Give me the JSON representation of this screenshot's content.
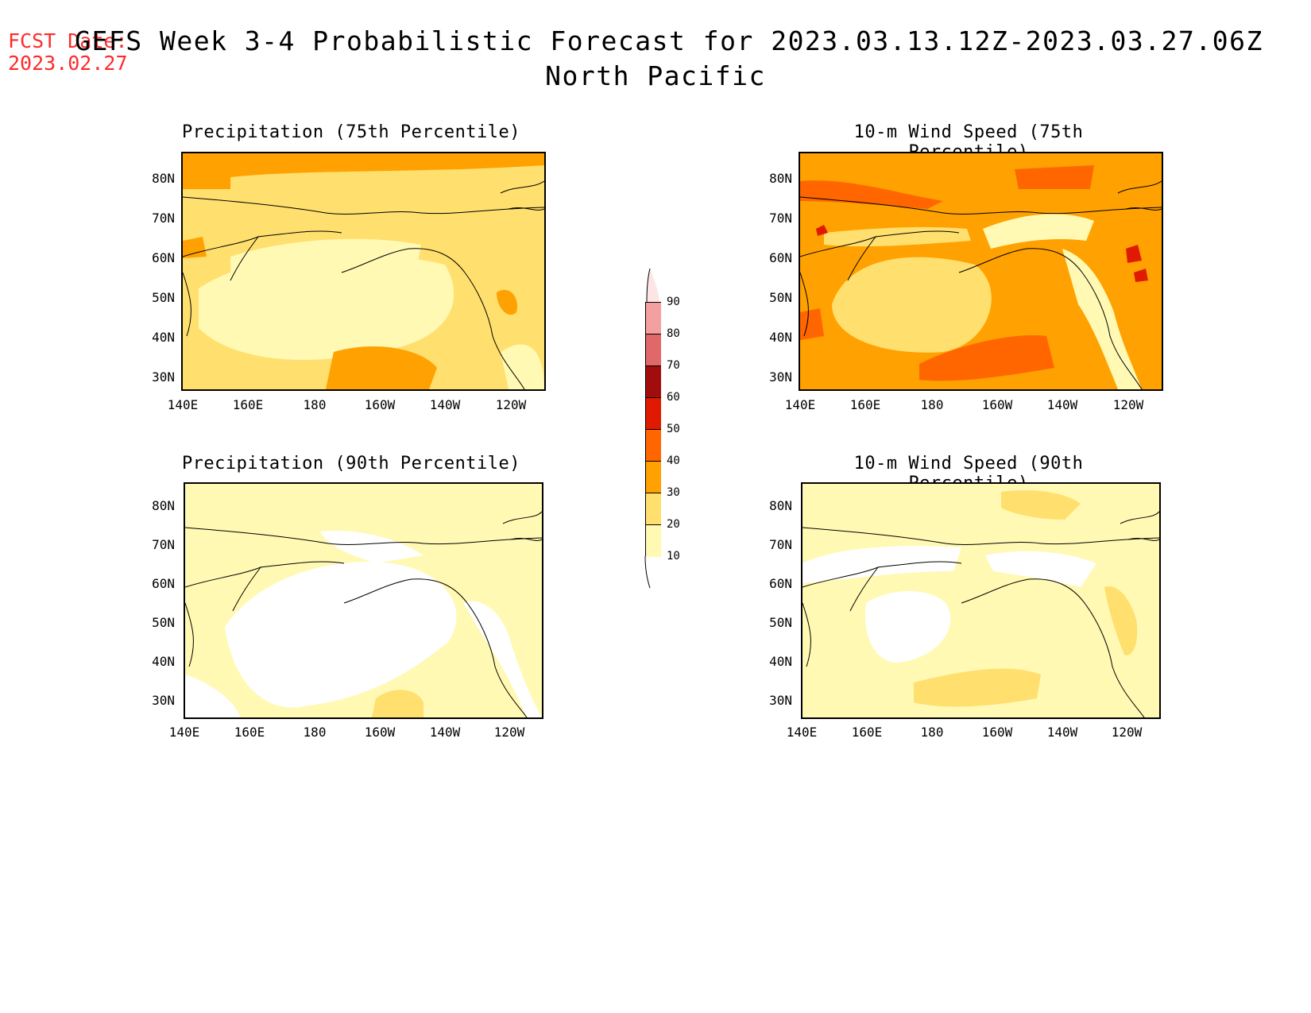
{
  "header": {
    "fcst_label": "FCST Date:",
    "fcst_date": "2023.02.27",
    "title": "GEFS Week 3-4 Probabilistic Forecast for 2023.03.13.12Z-2023.03.27.06Z",
    "subtitle": "North Pacific"
  },
  "panels": [
    {
      "title": "Precipitation (75th Percentile)",
      "category": "20-30"
    },
    {
      "title": "10-m Wind Speed (75th Percentile)",
      "category": "30-40"
    },
    {
      "title": "Precipitation (90th Percentile)",
      "category": "10-20"
    },
    {
      "title": "10-m Wind Speed (90th Percentile)",
      "category": "10-20"
    }
  ],
  "axes": {
    "lat_labels": [
      "80N",
      "70N",
      "60N",
      "50N",
      "40N",
      "30N"
    ],
    "lon_labels": [
      "140E",
      "160E",
      "180",
      "160W",
      "140W",
      "120W"
    ]
  },
  "colorbar": {
    "levels": [
      "90",
      "80",
      "70",
      "60",
      "50",
      "40",
      "30",
      "20",
      "10"
    ],
    "colors": [
      "#f4a0a0",
      "#e06868",
      "#a10d0d",
      "#e01a00",
      "#ff6600",
      "#ffa100",
      "#ffdf6e",
      "#fff9b3"
    ],
    "top_color": "#fde5e5"
  },
  "palette": {
    "white": "#ffffff",
    "c10": "#fff9b3",
    "c20": "#ffdf6e",
    "c30": "#ffa100",
    "c40": "#ff6600",
    "c50": "#e01a00",
    "coast": "#000000",
    "fcst_color": "#ff2a2a"
  }
}
